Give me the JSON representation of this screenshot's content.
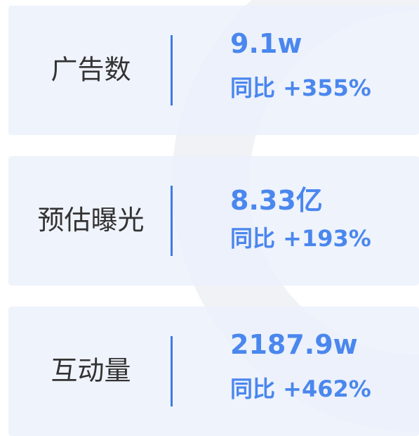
{
  "cards": [
    {
      "label": "广告数",
      "value": "9.1w",
      "change": "同比 +355%"
    },
    {
      "label": "预估曝光",
      "value": "8.33亿",
      "change": "同比 +193%"
    },
    {
      "label": "互动量",
      "value": "2187.9w",
      "change": "同比 +462%"
    }
  ]
}
